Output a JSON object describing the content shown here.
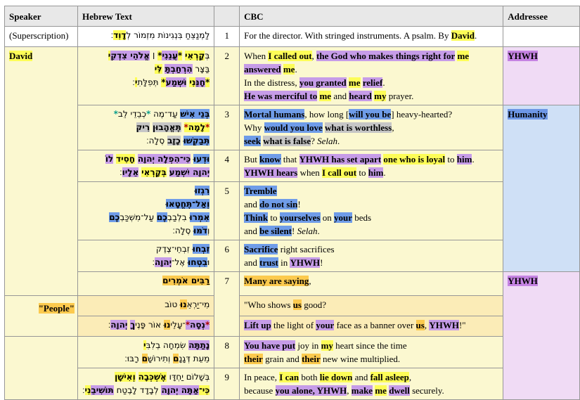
{
  "palette": {
    "highlight_yellow": "#fdfd57",
    "highlight_gold": "#fcca4e",
    "highlight_purple": "#c69ce8",
    "highlight_blue": "#6f9ce8",
    "highlight_gray": "#c6c6c6",
    "row_yellow": "#fbf8d0",
    "row_peach": "#fbecb7",
    "addressee_lavender": "#f0dbf5",
    "addressee_blue": "#cfe0f6",
    "header_gray": "#e8e8e8",
    "border_gray": "#979797"
  },
  "header": {
    "speaker": "Speaker",
    "hebrew": "Hebrew Text",
    "verse": "",
    "cbc": "CBC",
    "addressee": "Addressee"
  },
  "rows": {
    "sup": {
      "speaker": [
        [
          "(Superscription)",
          ""
        ]
      ],
      "hebrew": [
        [
          [
            "לַמְנַצֵּחַ בִּנְגִינוֹת מִזְמוֹר לְ",
            ""
          ],
          [
            "דָוִד",
            "y"
          ],
          [
            "׃",
            ""
          ]
        ]
      ],
      "verse": "1",
      "cbc": [
        [
          [
            "For the director. With stringed instruments. A psalm. By ",
            ""
          ],
          [
            "David",
            "y"
          ],
          [
            ".",
            ""
          ]
        ]
      ],
      "addressee": []
    },
    "v2": {
      "speaker": [
        [
          "David",
          "y"
        ]
      ],
      "hebrew": [
        [
          [
            "בְּ",
            ""
          ],
          [
            "קָרְאִי",
            "y"
          ],
          [
            " ",
            ""
          ],
          [
            "*",
            "y"
          ],
          [
            "עֲנֵנִי",
            "p"
          ],
          [
            "*",
            "y"
          ],
          [
            " ׀ ",
            ""
          ],
          [
            "אֱלֹהֵי צִדְקִ",
            "p"
          ],
          [
            "י",
            "y"
          ]
        ],
        [
          [
            "בַּצָּר ",
            ""
          ],
          [
            "הִרְחַבְתָּ",
            "p"
          ],
          [
            " ",
            ""
          ],
          [
            "לִּי",
            "y"
          ]
        ],
        [
          [
            "*",
            "y"
          ],
          [
            "חָנֵּ",
            "p"
          ],
          [
            "נִי",
            "y"
          ],
          [
            " ",
            ""
          ],
          [
            "וּשְׁמַע",
            "p"
          ],
          [
            "*",
            "y"
          ],
          [
            " תְּפִלָּתִ",
            ""
          ],
          [
            "י",
            "y"
          ],
          [
            "׃",
            ""
          ]
        ]
      ],
      "verse": "2",
      "cbc": [
        [
          [
            "When ",
            ""
          ],
          [
            "I called out",
            "y"
          ],
          [
            ", ",
            ""
          ],
          [
            "the God who makes things right for",
            "p"
          ],
          [
            " ",
            ""
          ],
          [
            "me",
            "y"
          ]
        ],
        [
          [
            "answered",
            "p"
          ],
          [
            " ",
            ""
          ],
          [
            "me",
            "y"
          ],
          [
            ".",
            ""
          ]
        ],
        [
          [
            "In the distress, ",
            ""
          ],
          [
            "you granted",
            "p"
          ],
          [
            " ",
            ""
          ],
          [
            "me",
            "y"
          ],
          [
            " ",
            ""
          ],
          [
            "relief",
            "p"
          ],
          [
            ".",
            ""
          ]
        ],
        [
          [
            "He was merciful to",
            "p"
          ],
          [
            " ",
            ""
          ],
          [
            "me",
            "y"
          ],
          [
            " and ",
            ""
          ],
          [
            "heard",
            "p"
          ],
          [
            " ",
            ""
          ],
          [
            "my",
            "y"
          ],
          [
            " prayer.",
            ""
          ]
        ]
      ],
      "addressee": [
        [
          "YHWH",
          "ap"
        ]
      ]
    },
    "v3": {
      "hebrew": [
        [
          [
            "בְּנֵי אִישׁ",
            "b"
          ],
          [
            " עַד־מֶה ",
            ""
          ],
          [
            "*",
            "teal"
          ],
          [
            "כְבֵדֵי לֵב",
            ""
          ],
          [
            "*",
            "teal"
          ]
        ],
        [
          [
            "*",
            "ry"
          ],
          [
            "לָמָה",
            "y"
          ],
          [
            "*",
            "ry"
          ],
          [
            " ",
            ""
          ],
          [
            "תֶּאֱהָבוּן",
            "gy"
          ],
          [
            " ",
            ""
          ],
          [
            "רִיק",
            "gy"
          ]
        ],
        [
          [
            "תְּבַקְשׁוּ",
            "b"
          ],
          [
            " ",
            ""
          ],
          [
            "כָזָב",
            "gy"
          ],
          [
            " סֶלָה׃",
            ""
          ]
        ]
      ],
      "verse": "3",
      "cbc": [
        [
          [
            "Mortal humans",
            "b"
          ],
          [
            ", how long [",
            ""
          ],
          [
            "will you be",
            "b"
          ],
          [
            "] heavy-hearted?",
            ""
          ]
        ],
        [
          [
            "Why ",
            ""
          ],
          [
            "would you love",
            "b"
          ],
          [
            " ",
            ""
          ],
          [
            "what is worthless",
            "gy"
          ],
          [
            ",",
            ""
          ]
        ],
        [
          [
            "seek",
            "b"
          ],
          [
            " ",
            ""
          ],
          [
            "what is false",
            "gy"
          ],
          [
            "? ",
            ""
          ],
          [
            "Selah",
            "i"
          ],
          [
            ".",
            ""
          ]
        ]
      ],
      "addressee": [
        [
          "Humanity",
          "ab"
        ]
      ]
    },
    "v4": {
      "hebrew": [
        [
          [
            "וּדְעוּ",
            "b"
          ],
          [
            " ",
            ""
          ],
          [
            "כִּי־הִפְלָה יְהוָה",
            "p"
          ],
          [
            " ",
            ""
          ],
          [
            "חָסִיד",
            "y"
          ],
          [
            " ",
            ""
          ],
          [
            "לוֹ",
            "p"
          ]
        ],
        [
          [
            "יְהוָה יִשְׁמַע",
            "p"
          ],
          [
            " ",
            ""
          ],
          [
            "בְּקָרְאִי",
            "y"
          ],
          [
            " ",
            ""
          ],
          [
            "אֵלָיו",
            "p"
          ],
          [
            "׃",
            ""
          ]
        ]
      ],
      "verse": "4",
      "cbc": [
        [
          [
            "But ",
            ""
          ],
          [
            "know",
            "b"
          ],
          [
            " that ",
            ""
          ],
          [
            "YHWH has set apart",
            "p"
          ],
          [
            " ",
            ""
          ],
          [
            "one who is loyal",
            "y"
          ],
          [
            " to ",
            ""
          ],
          [
            "him",
            "p"
          ],
          [
            ".",
            ""
          ]
        ],
        [
          [
            "YHWH hears",
            "p"
          ],
          [
            " when ",
            ""
          ],
          [
            "I call out",
            "y"
          ],
          [
            " to ",
            ""
          ],
          [
            "him",
            "p"
          ],
          [
            ".",
            ""
          ]
        ]
      ]
    },
    "v5": {
      "hebrew": [
        [
          [
            "רִגְזוּ",
            "b"
          ]
        ],
        [
          [
            "וְאַל־תֶּחֱטָאוּ",
            "b"
          ]
        ],
        [
          [
            "אִמְרוּ",
            "b"
          ],
          [
            " בִלְבַבְ",
            ""
          ],
          [
            "כֶם",
            "b"
          ],
          [
            " עַל־מִשְׁכַּבְ",
            ""
          ],
          [
            "כֶם",
            "b"
          ]
        ],
        [
          [
            "וְ",
            ""
          ],
          [
            "דֹמּוּ",
            "b"
          ],
          [
            " סֶלָה׃",
            ""
          ]
        ]
      ],
      "verse": "5",
      "cbc": [
        [
          [
            "Tremble",
            "b"
          ]
        ],
        [
          [
            "and ",
            ""
          ],
          [
            "do not sin",
            "b"
          ],
          [
            "!",
            ""
          ]
        ],
        [
          [
            "Think",
            "b"
          ],
          [
            " to ",
            ""
          ],
          [
            "yourselves",
            "b"
          ],
          [
            " on ",
            ""
          ],
          [
            "your",
            "b"
          ],
          [
            " beds",
            ""
          ]
        ],
        [
          [
            "and ",
            ""
          ],
          [
            "be silent",
            "b"
          ],
          [
            "! ",
            ""
          ],
          [
            "Selah",
            "i"
          ],
          [
            ".",
            ""
          ]
        ]
      ]
    },
    "v6": {
      "hebrew": [
        [
          [
            "זִבְחוּ",
            "b"
          ],
          [
            " זִבְחֵי־צֶדֶק",
            ""
          ]
        ],
        [
          [
            "וּ",
            ""
          ],
          [
            "בִטְחוּ",
            "b"
          ],
          [
            " אֶל־",
            ""
          ],
          [
            "יְהוָה",
            "p"
          ],
          [
            "׃",
            ""
          ]
        ]
      ],
      "verse": "6",
      "cbc": [
        [
          [
            "Sacrifice",
            "b"
          ],
          [
            " right sacrifices",
            ""
          ]
        ],
        [
          [
            "and ",
            ""
          ],
          [
            "trust",
            "b"
          ],
          [
            " in ",
            ""
          ],
          [
            "YHWH",
            "p"
          ],
          [
            "!",
            ""
          ]
        ]
      ]
    },
    "v7": {
      "hebrew": [
        [
          [
            "רַבִּים אֹמְרִים",
            "g"
          ]
        ]
      ],
      "verse": "7",
      "cbc": [
        [
          [
            "Many are saying",
            "g"
          ],
          [
            ",",
            ""
          ]
        ]
      ],
      "addressee": [
        [
          "YHWH",
          "ap"
        ]
      ]
    },
    "q1": {
      "speaker": [
        [
          "\"People\"",
          "g"
        ]
      ],
      "hebrew": [
        [
          [
            "מִי־יַרְאֵ",
            ""
          ],
          [
            "נוּ",
            "g"
          ],
          [
            " טוֹב",
            ""
          ]
        ]
      ],
      "cbc": [
        [
          [
            "\"Who shows ",
            ""
          ],
          [
            "us",
            "g"
          ],
          [
            " good?",
            ""
          ]
        ]
      ]
    },
    "q2": {
      "hebrew": [
        [
          [
            "*",
            "rp"
          ],
          [
            "נְסָה",
            "p"
          ],
          [
            "*",
            "rp"
          ],
          [
            "־עָלֵי",
            ""
          ],
          [
            "נוּ",
            "g"
          ],
          [
            " אוֹר פָּנֶי",
            ""
          ],
          [
            "ךָ",
            "p"
          ],
          [
            " ",
            ""
          ],
          [
            "יְהוָה",
            "p"
          ],
          [
            "׃",
            ""
          ]
        ]
      ],
      "cbc": [
        [
          [
            "Lift up",
            "p"
          ],
          [
            " the light of ",
            ""
          ],
          [
            "your",
            "p"
          ],
          [
            " face as a banner over ",
            ""
          ],
          [
            "us",
            "g"
          ],
          [
            ", ",
            ""
          ],
          [
            "YHWH",
            "p"
          ],
          [
            "!\"",
            ""
          ]
        ]
      ]
    },
    "v8": {
      "speaker": [],
      "hebrew": [
        [
          [
            "נָתַתָּה",
            "p"
          ],
          [
            " שִׂמְחָה בְלִבִּ",
            ""
          ],
          [
            "י",
            "y"
          ]
        ],
        [
          [
            "מֵעֵת דְּגָנָ",
            ""
          ],
          [
            "ם",
            "g"
          ],
          [
            " וְתִירוֹשָׁ",
            ""
          ],
          [
            "ם",
            "g"
          ],
          [
            " רָבּוּ׃",
            ""
          ]
        ]
      ],
      "verse": "8",
      "cbc": [
        [
          [
            "You have put",
            "p"
          ],
          [
            " joy in ",
            ""
          ],
          [
            "my",
            "y"
          ],
          [
            " heart since the time",
            ""
          ]
        ],
        [
          [
            "their",
            "g"
          ],
          [
            " grain and ",
            ""
          ],
          [
            "their",
            "g"
          ],
          [
            " new wine multiplied.",
            ""
          ]
        ]
      ]
    },
    "v9": {
      "hebrew": [
        [
          [
            "בְּשָׁלוֹם יַחְדָּו ",
            ""
          ],
          [
            "אֶשְׁכְּבָה",
            "y"
          ],
          [
            " ",
            ""
          ],
          [
            "וְאִישָׁן",
            "y"
          ]
        ],
        [
          [
            "כִּי־",
            "y"
          ],
          [
            "אַתָּה יְהוָה",
            "p"
          ],
          [
            " לְבָדָד לָבֶטַח ",
            ""
          ],
          [
            "תּוֹשִׁיבֵ",
            "p"
          ],
          [
            "נִי",
            "y"
          ],
          [
            "׃",
            ""
          ]
        ]
      ],
      "verse": "9",
      "cbc": [
        [
          [
            "In peace, ",
            ""
          ],
          [
            "I can",
            "y"
          ],
          [
            " both ",
            ""
          ],
          [
            "lie down",
            "y"
          ],
          [
            " and ",
            ""
          ],
          [
            "fall asleep",
            "y"
          ],
          [
            ",",
            ""
          ]
        ],
        [
          [
            "because ",
            ""
          ],
          [
            "you alone, YHWH",
            "p"
          ],
          [
            ", ",
            ""
          ],
          [
            "make",
            "p"
          ],
          [
            " ",
            ""
          ],
          [
            "me",
            "y"
          ],
          [
            " ",
            ""
          ],
          [
            "dwell",
            "p"
          ],
          [
            " securely.",
            ""
          ]
        ]
      ]
    }
  }
}
